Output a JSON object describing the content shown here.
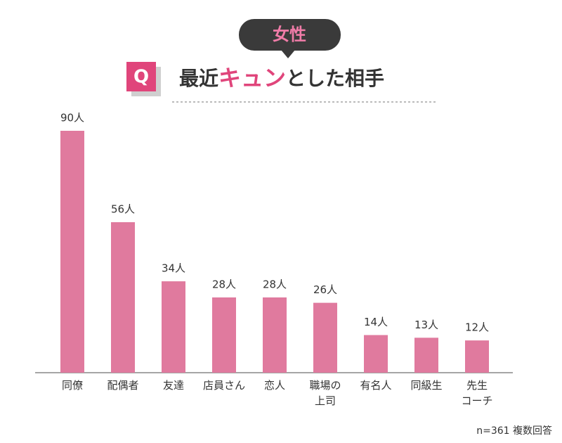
{
  "badge": "Q",
  "tag": "女性",
  "chart_data": {
    "type": "bar",
    "title": {
      "before": "最近",
      "highlight": "キュン",
      "after": "とした相手"
    },
    "categories": [
      "同僚",
      "配偶者",
      "友達",
      "店員さん",
      "恋人",
      "職場の\n上司",
      "有名人",
      "同級生",
      "先生\nコーチ"
    ],
    "values": [
      90,
      56,
      34,
      28,
      28,
      26,
      14,
      13,
      12
    ],
    "value_labels": [
      "90人",
      "56人",
      "34人",
      "28人",
      "28人",
      "26人",
      "14人",
      "13人",
      "12人"
    ],
    "color": "#e07a9e",
    "highlight_color": "#e0457b",
    "note": "n=361 複数回答"
  }
}
